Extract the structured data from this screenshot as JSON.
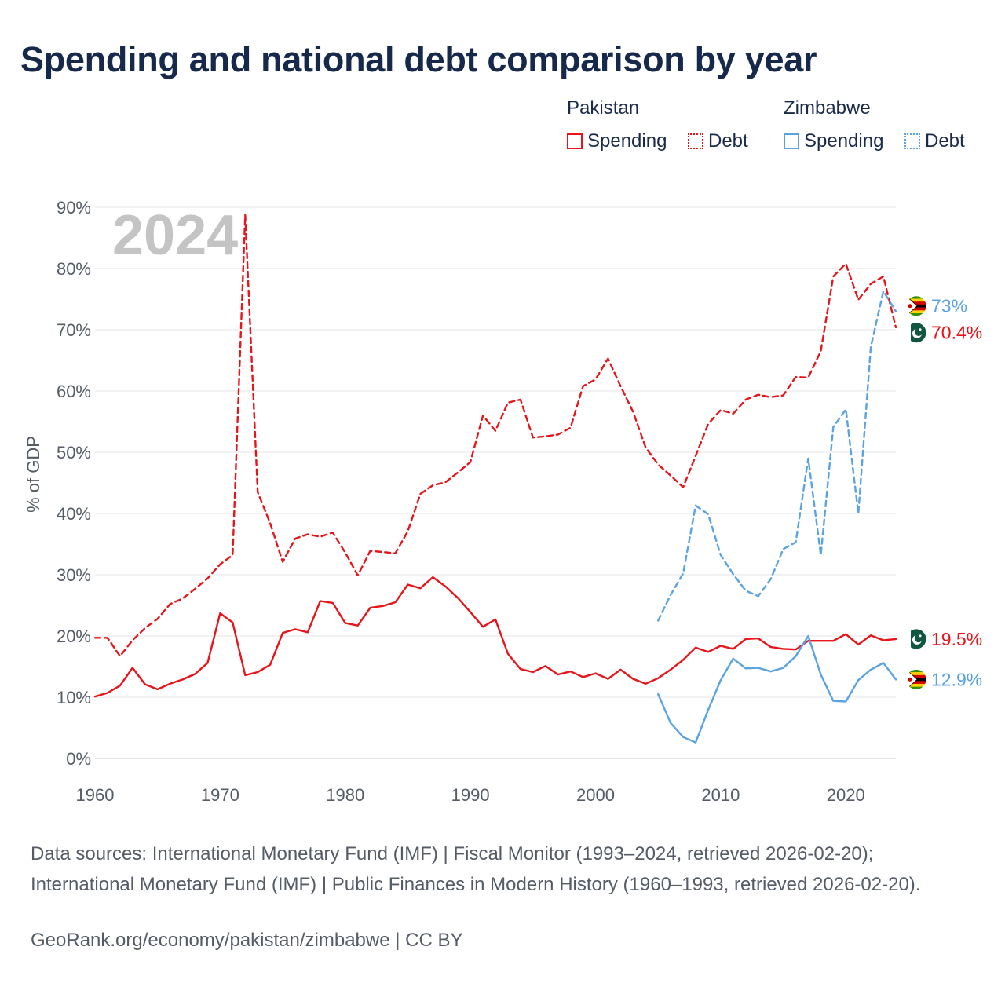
{
  "title": "Spending and national debt comparison by year",
  "legend": {
    "groups": [
      {
        "country": "Pakistan",
        "color": "#e8141a",
        "spending_label": "Spending",
        "debt_label": "Debt"
      },
      {
        "country": "Zimbabwe",
        "color": "#5aa3e3",
        "spending_label": "Spending",
        "debt_label": "Debt"
      }
    ]
  },
  "footer": {
    "sources": "Data sources: International Monetary Fund (IMF) | Fiscal Monitor (1993–2024, retrieved 2026-02-20); International Monetary Fund (IMF) | Public Finances in Modern History (1960–1993, retrieved 2026-02-20).",
    "credit": "GeoRank.org/economy/pakistan/zimbabwe | CC BY"
  },
  "chart_data": {
    "type": "line",
    "title": "Spending and national debt comparison by year",
    "year_watermark": "2024",
    "ylabel": "% of GDP",
    "xlabel": "",
    "xlim": [
      1960,
      2024
    ],
    "ylim": [
      0,
      90
    ],
    "x_ticks": [
      1960,
      1970,
      1980,
      1990,
      2000,
      2010,
      2020
    ],
    "y_ticks": [
      0,
      10,
      20,
      30,
      40,
      50,
      60,
      70,
      80,
      90
    ],
    "y_tick_labels": [
      "0%",
      "10%",
      "20%",
      "30%",
      "40%",
      "50%",
      "60%",
      "70%",
      "80%",
      "90%"
    ],
    "grid": true,
    "series": [
      {
        "name": "Pakistan Spending",
        "country": "Pakistan",
        "metric": "Spending",
        "style": "solid",
        "color": "#e8141a",
        "end_label": "19.5%",
        "flag": "pakistan",
        "points": [
          [
            1960,
            10.1
          ],
          [
            1961,
            10.7
          ],
          [
            1962,
            11.9
          ],
          [
            1963,
            14.8
          ],
          [
            1964,
            12.1
          ],
          [
            1965,
            11.3
          ],
          [
            1966,
            12.2
          ],
          [
            1967,
            12.9
          ],
          [
            1968,
            13.8
          ],
          [
            1969,
            15.6
          ],
          [
            1970,
            23.7
          ],
          [
            1971,
            22.2
          ],
          [
            1972,
            13.6
          ],
          [
            1973,
            14.1
          ],
          [
            1974,
            15.3
          ],
          [
            1975,
            20.5
          ],
          [
            1976,
            21.1
          ],
          [
            1977,
            20.6
          ],
          [
            1978,
            25.7
          ],
          [
            1979,
            25.4
          ],
          [
            1980,
            22.1
          ],
          [
            1981,
            21.7
          ],
          [
            1982,
            24.6
          ],
          [
            1983,
            24.9
          ],
          [
            1984,
            25.5
          ],
          [
            1985,
            28.4
          ],
          [
            1986,
            27.8
          ],
          [
            1987,
            29.6
          ],
          [
            1988,
            28.1
          ],
          [
            1989,
            26.2
          ],
          [
            1990,
            23.9
          ],
          [
            1991,
            21.5
          ],
          [
            1992,
            22.7
          ],
          [
            1993,
            17.1
          ],
          [
            1994,
            14.6
          ],
          [
            1995,
            14.1
          ],
          [
            1996,
            15.1
          ],
          [
            1997,
            13.7
          ],
          [
            1998,
            14.2
          ],
          [
            1999,
            13.3
          ],
          [
            2000,
            13.9
          ],
          [
            2001,
            13.0
          ],
          [
            2002,
            14.5
          ],
          [
            2003,
            13.0
          ],
          [
            2004,
            12.2
          ],
          [
            2005,
            13.1
          ],
          [
            2006,
            14.5
          ],
          [
            2007,
            16.1
          ],
          [
            2008,
            18.1
          ],
          [
            2009,
            17.4
          ],
          [
            2010,
            18.4
          ],
          [
            2011,
            17.9
          ],
          [
            2012,
            19.5
          ],
          [
            2013,
            19.6
          ],
          [
            2014,
            18.2
          ],
          [
            2015,
            17.9
          ],
          [
            2016,
            17.8
          ],
          [
            2017,
            19.2
          ],
          [
            2018,
            19.2
          ],
          [
            2019,
            19.2
          ],
          [
            2020,
            20.3
          ],
          [
            2021,
            18.6
          ],
          [
            2022,
            20.1
          ],
          [
            2023,
            19.3
          ],
          [
            2024,
            19.5
          ]
        ]
      },
      {
        "name": "Pakistan Debt",
        "country": "Pakistan",
        "metric": "Debt",
        "style": "dashed",
        "color": "#e8141a",
        "end_label": "70.4%",
        "flag": "pakistan",
        "points": [
          [
            1960,
            19.7
          ],
          [
            1961,
            19.7
          ],
          [
            1962,
            16.7
          ],
          [
            1963,
            19.3
          ],
          [
            1964,
            21.3
          ],
          [
            1965,
            22.8
          ],
          [
            1966,
            25.2
          ],
          [
            1967,
            26.1
          ],
          [
            1968,
            27.7
          ],
          [
            1969,
            29.4
          ],
          [
            1970,
            31.7
          ],
          [
            1971,
            33.2
          ],
          [
            1972,
            88.7
          ],
          [
            1973,
            43.5
          ],
          [
            1974,
            38.4
          ],
          [
            1975,
            32.1
          ],
          [
            1976,
            35.9
          ],
          [
            1977,
            36.6
          ],
          [
            1978,
            36.2
          ],
          [
            1979,
            36.9
          ],
          [
            1980,
            33.6
          ],
          [
            1981,
            29.9
          ],
          [
            1982,
            33.9
          ],
          [
            1983,
            33.7
          ],
          [
            1984,
            33.5
          ],
          [
            1985,
            37.1
          ],
          [
            1986,
            43.2
          ],
          [
            1987,
            44.6
          ],
          [
            1988,
            45.1
          ],
          [
            1989,
            46.7
          ],
          [
            1990,
            48.4
          ],
          [
            1991,
            56.0
          ],
          [
            1992,
            53.5
          ],
          [
            1993,
            58.1
          ],
          [
            1994,
            58.6
          ],
          [
            1995,
            52.4
          ],
          [
            1996,
            52.6
          ],
          [
            1997,
            52.9
          ],
          [
            1998,
            54.0
          ],
          [
            1999,
            60.8
          ],
          [
            2000,
            61.9
          ],
          [
            2001,
            65.3
          ],
          [
            2002,
            60.8
          ],
          [
            2003,
            56.6
          ],
          [
            2004,
            50.8
          ],
          [
            2005,
            48.0
          ],
          [
            2006,
            46.2
          ],
          [
            2007,
            44.3
          ],
          [
            2008,
            49.4
          ],
          [
            2009,
            54.6
          ],
          [
            2010,
            56.9
          ],
          [
            2011,
            56.3
          ],
          [
            2012,
            58.6
          ],
          [
            2013,
            59.4
          ],
          [
            2014,
            59.0
          ],
          [
            2015,
            59.3
          ],
          [
            2016,
            62.3
          ],
          [
            2017,
            62.2
          ],
          [
            2018,
            66.5
          ],
          [
            2019,
            78.7
          ],
          [
            2020,
            80.8
          ],
          [
            2021,
            74.9
          ],
          [
            2022,
            77.5
          ],
          [
            2023,
            78.7
          ],
          [
            2024,
            70.4
          ]
        ]
      },
      {
        "name": "Zimbabwe Spending",
        "country": "Zimbabwe",
        "metric": "Spending",
        "style": "solid",
        "color": "#5aa3e3",
        "end_label": "12.9%",
        "flag": "zimbabwe",
        "points": [
          [
            2005,
            10.5
          ],
          [
            2006,
            5.8
          ],
          [
            2007,
            3.5
          ],
          [
            2008,
            2.6
          ],
          [
            2009,
            7.9
          ],
          [
            2010,
            12.8
          ],
          [
            2011,
            16.3
          ],
          [
            2012,
            14.7
          ],
          [
            2013,
            14.8
          ],
          [
            2014,
            14.2
          ],
          [
            2015,
            14.8
          ],
          [
            2016,
            16.7
          ],
          [
            2017,
            20.0
          ],
          [
            2018,
            13.7
          ],
          [
            2019,
            9.4
          ],
          [
            2020,
            9.3
          ],
          [
            2021,
            12.8
          ],
          [
            2022,
            14.5
          ],
          [
            2023,
            15.6
          ],
          [
            2024,
            12.9
          ]
        ]
      },
      {
        "name": "Zimbabwe Debt",
        "country": "Zimbabwe",
        "metric": "Debt",
        "style": "dashed",
        "color": "#5aa3e3",
        "end_label": "73%",
        "flag": "zimbabwe",
        "points": [
          [
            2005,
            22.5
          ],
          [
            2006,
            26.7
          ],
          [
            2007,
            30.2
          ],
          [
            2008,
            41.3
          ],
          [
            2009,
            39.9
          ],
          [
            2010,
            33.2
          ],
          [
            2011,
            30.1
          ],
          [
            2012,
            27.4
          ],
          [
            2013,
            26.5
          ],
          [
            2014,
            29.3
          ],
          [
            2015,
            34.2
          ],
          [
            2016,
            35.3
          ],
          [
            2017,
            49.0
          ],
          [
            2018,
            33.2
          ],
          [
            2019,
            54.1
          ],
          [
            2020,
            57.0
          ],
          [
            2021,
            40.0
          ],
          [
            2022,
            67.2
          ],
          [
            2023,
            76.3
          ],
          [
            2024,
            73.0
          ]
        ]
      }
    ]
  }
}
